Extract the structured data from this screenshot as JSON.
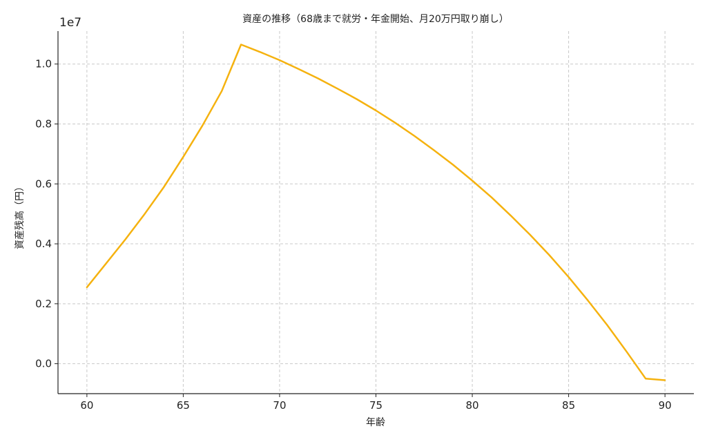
{
  "chart_data": {
    "type": "line",
    "title": "資産の推移（68歳まで就労・年金開始、月20万円取り崩し）",
    "xlabel": "年齢",
    "ylabel": "資産残高（円）",
    "y_offset_label": "1e7",
    "xlim": [
      58.5,
      91.5
    ],
    "ylim": [
      -0.1,
      1.11
    ],
    "x_ticks": [
      60,
      65,
      70,
      75,
      80,
      85,
      90
    ],
    "x_tick_labels": [
      "60",
      "65",
      "70",
      "75",
      "80",
      "85",
      "90"
    ],
    "y_ticks": [
      0.0,
      0.2,
      0.4,
      0.6,
      0.8,
      1.0
    ],
    "y_tick_labels": [
      "0.0",
      "0.2",
      "0.4",
      "0.6",
      "0.8",
      "1.0"
    ],
    "grid": true,
    "series": [
      {
        "color": "#f5b20f",
        "x": [
          60,
          61,
          62,
          63,
          64,
          65,
          66,
          67,
          68,
          69,
          70,
          71,
          72,
          73,
          74,
          75,
          76,
          77,
          78,
          79,
          80,
          81,
          82,
          83,
          84,
          85,
          86,
          87,
          88,
          89,
          90
        ],
        "y": [
          0.255,
          0.335,
          0.415,
          0.5,
          0.59,
          0.69,
          0.795,
          0.91,
          1.065,
          1.04,
          1.013,
          0.983,
          0.952,
          0.918,
          0.883,
          0.845,
          0.804,
          0.76,
          0.713,
          0.664,
          0.611,
          0.555,
          0.494,
          0.43,
          0.362,
          0.289,
          0.211,
          0.129,
          0.041,
          -0.05,
          -0.055
        ]
      }
    ]
  }
}
